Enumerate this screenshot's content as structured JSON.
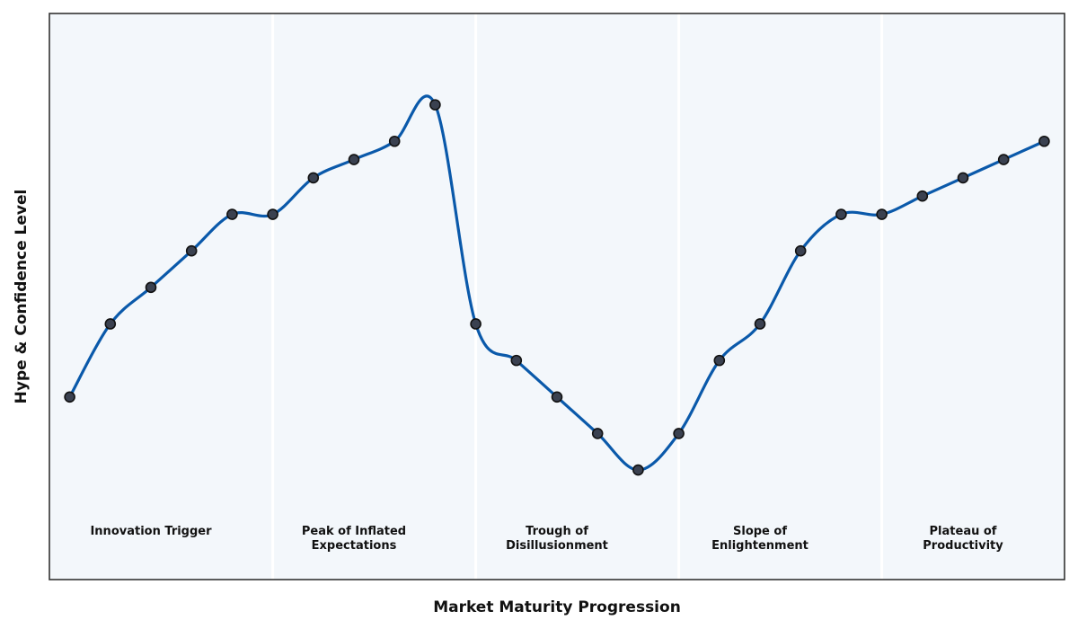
{
  "chart_data": {
    "type": "line",
    "title": "",
    "xlabel": "Market Maturity Progression",
    "ylabel": "Hype & Confidence Level",
    "x": [
      0,
      1,
      2,
      3,
      4,
      5,
      6,
      7,
      8,
      9,
      10,
      11,
      12,
      13,
      14,
      15,
      16,
      17,
      18,
      19,
      20,
      21,
      22,
      23,
      24
    ],
    "series": [
      {
        "values": [
          5.0,
          7.0,
          8.0,
          9.0,
          10.0,
          10.0,
          11.0,
          11.5,
          12.0,
          13.0,
          7.0,
          6.0,
          5.0,
          4.0,
          3.0,
          4.0,
          6.0,
          7.0,
          9.0,
          10.0,
          10.0,
          10.5,
          11.0,
          11.5,
          12.0
        ]
      }
    ],
    "xlim": [
      -0.5,
      24.5
    ],
    "ylim": [
      0.0,
      15.5
    ],
    "grid": false,
    "legend": "none",
    "phases": [
      {
        "lines": [
          "Innovation Trigger"
        ],
        "x_start": -0.5,
        "x_end": 5.0,
        "x_center": 2.0
      },
      {
        "lines": [
          "Peak of Inflated",
          "Expectations"
        ],
        "x_start": 5.0,
        "x_end": 10.0,
        "x_center": 7.0
      },
      {
        "lines": [
          "Trough of",
          "Disillusionment"
        ],
        "x_start": 10.0,
        "x_end": 15.0,
        "x_center": 12.0
      },
      {
        "lines": [
          "Slope of",
          "Enlightenment"
        ],
        "x_start": 15.0,
        "x_end": 20.0,
        "x_center": 17.0
      },
      {
        "lines": [
          "Plateau of",
          "Productivity"
        ],
        "x_start": 20.0,
        "x_end": 24.5,
        "x_center": 22.0
      }
    ],
    "colors": {
      "line": "#0a59aa",
      "marker_fill": "#3a4150",
      "marker_edge": "#111111",
      "plot_background": "#f3f7fb",
      "phase_divider": "#ffffff",
      "frame": "#333333"
    }
  }
}
